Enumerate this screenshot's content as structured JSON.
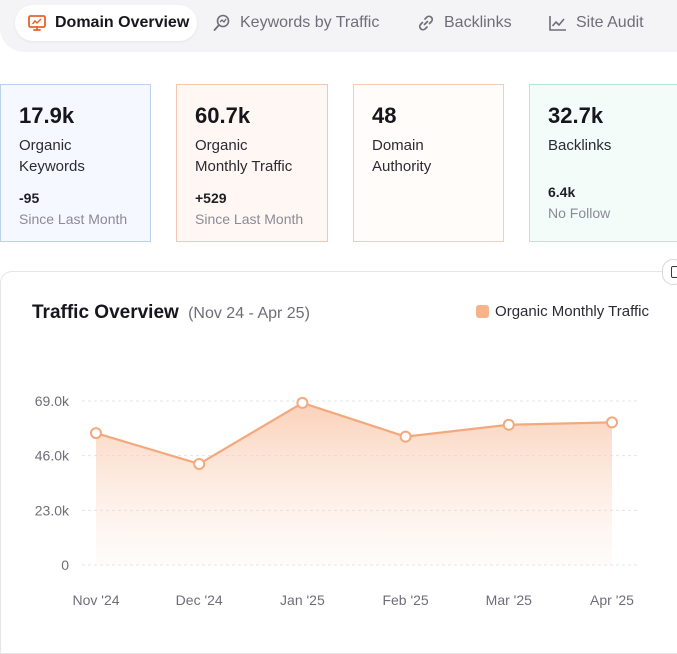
{
  "tabs": [
    {
      "label": "Domain Overview",
      "icon": "monitor-icon",
      "active": true
    },
    {
      "label": "Keywords by Traffic",
      "icon": "keyword-search-icon",
      "active": false
    },
    {
      "label": "Backlinks",
      "icon": "link-icon",
      "active": false
    },
    {
      "label": "Site Audit",
      "icon": "line-chart-icon",
      "active": false
    }
  ],
  "stats": [
    {
      "value": "17.9k",
      "label_line1": "Organic",
      "label_line2": "Keywords",
      "delta": "-95",
      "sub": "Since Last Month"
    },
    {
      "value": "60.7k",
      "label_line1": "Organic",
      "label_line2": "Monthly Traffic",
      "delta": "+529",
      "sub": "Since Last Month"
    },
    {
      "value": "48",
      "label_line1": "Domain",
      "label_line2": "Authority",
      "delta": "",
      "sub": ""
    },
    {
      "value": "32.7k",
      "label_line1": "Backlinks",
      "label_line2": "",
      "delta": "6.4k",
      "sub": "No Follow"
    }
  ],
  "panel": {
    "title": "Traffic Overview",
    "range": "(Nov 24 - Apr 25)",
    "legend": "Organic Monthly Traffic"
  },
  "colors": {
    "accent": "#f7b48c",
    "line": "#f4a97d",
    "tab_icon_active": "#e8622c"
  },
  "chart_data": {
    "type": "area",
    "categories": [
      "Nov '24",
      "Dec '24",
      "Jan '25",
      "Feb '25",
      "Mar '25",
      "Apr '25"
    ],
    "series": [
      {
        "name": "Organic Monthly Traffic",
        "values": [
          55500,
          42500,
          68200,
          54000,
          59000,
          60000
        ]
      }
    ],
    "y_ticks": [
      "0",
      "23.0k",
      "46.0k",
      "69.0k"
    ],
    "y_tick_values": [
      0,
      23000,
      46000,
      69000
    ],
    "ylim": [
      0,
      69000
    ],
    "grid": true,
    "legend_position": "top-right"
  }
}
